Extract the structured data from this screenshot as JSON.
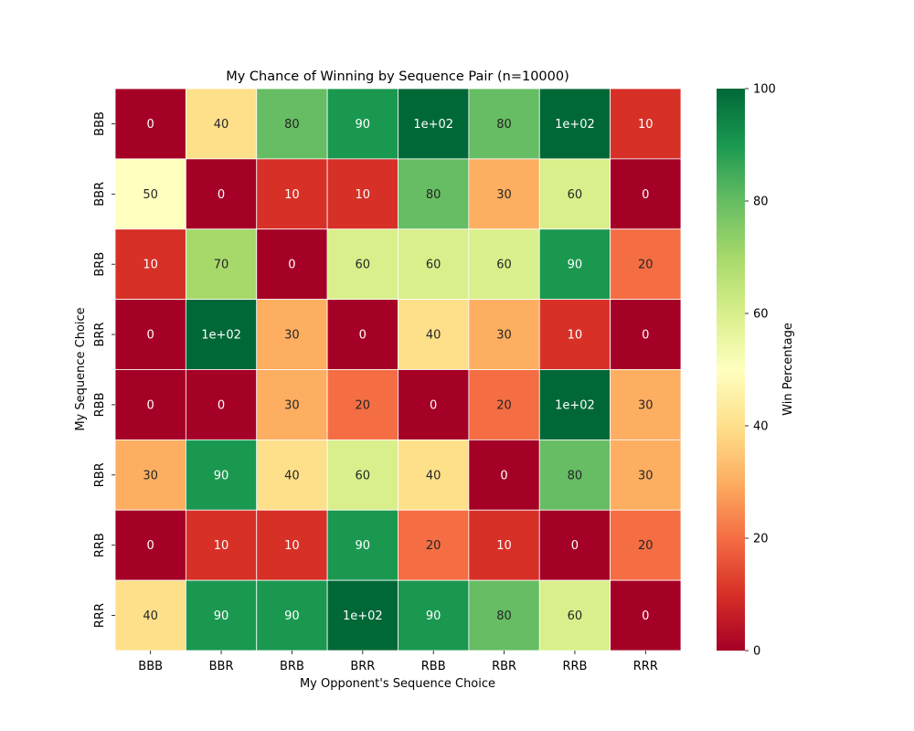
{
  "chart_data": {
    "type": "heatmap",
    "title": "My Chance of Winning by Sequence Pair (n=10000)",
    "xlabel": "My Opponent's Sequence Choice",
    "ylabel": "My Sequence Choice",
    "x_categories": [
      "BBB",
      "BBR",
      "BRB",
      "BRR",
      "RBB",
      "RBR",
      "RRB",
      "RRR"
    ],
    "y_categories": [
      "BBB",
      "BBR",
      "BRB",
      "BRR",
      "RBB",
      "RBR",
      "RRB",
      "RRR"
    ],
    "values": [
      [
        0,
        40,
        80,
        90,
        100,
        80,
        100,
        10
      ],
      [
        50,
        0,
        10,
        10,
        80,
        30,
        60,
        0
      ],
      [
        10,
        70,
        0,
        60,
        60,
        60,
        90,
        20
      ],
      [
        0,
        100,
        30,
        0,
        40,
        30,
        10,
        0
      ],
      [
        0,
        0,
        30,
        20,
        0,
        20,
        100,
        30
      ],
      [
        30,
        90,
        40,
        60,
        40,
        0,
        80,
        30
      ],
      [
        0,
        10,
        10,
        90,
        20,
        10,
        0,
        20
      ],
      [
        40,
        90,
        90,
        100,
        90,
        80,
        60,
        0
      ]
    ],
    "cell_labels": [
      [
        "0",
        "40",
        "80",
        "90",
        "1e+02",
        "80",
        "1e+02",
        "10"
      ],
      [
        "50",
        "0",
        "10",
        "10",
        "80",
        "30",
        "60",
        "0"
      ],
      [
        "10",
        "70",
        "0",
        "60",
        "60",
        "60",
        "90",
        "20"
      ],
      [
        "0",
        "1e+02",
        "30",
        "0",
        "40",
        "30",
        "10",
        "0"
      ],
      [
        "0",
        "0",
        "30",
        "20",
        "0",
        "20",
        "1e+02",
        "30"
      ],
      [
        "30",
        "90",
        "40",
        "60",
        "40",
        "0",
        "80",
        "30"
      ],
      [
        "0",
        "10",
        "10",
        "90",
        "20",
        "10",
        "0",
        "20"
      ],
      [
        "40",
        "90",
        "90",
        "1e+02",
        "90",
        "80",
        "60",
        "0"
      ]
    ],
    "colorbar": {
      "label": "Win Percentage",
      "range": [
        0,
        100
      ],
      "ticks": [
        0,
        20,
        40,
        60,
        80,
        100
      ],
      "colormap": "RdYlGn"
    },
    "grid": false,
    "cell_border_color": "#ffffff"
  }
}
